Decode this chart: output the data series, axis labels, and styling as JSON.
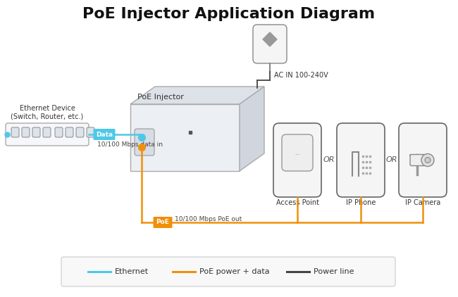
{
  "title": "PoE Injector Application Diagram",
  "title_fontsize": 16,
  "title_fontweight": "bold",
  "bg_color": "#ffffff",
  "eth_color": "#4ec8e8",
  "poe_color": "#f0900a",
  "power_color": "#444444",
  "legend": {
    "ethernet_label": "Ethernet",
    "poe_label": "PoE power + data",
    "power_label": "Power line"
  },
  "labels": {
    "ethernet_device": "Ethernet Device\n(Switch, Router, etc.)",
    "poe_injector": "PoE Injector",
    "ac_in": "AC IN 100-240V",
    "data": "Data",
    "data_in": "10/100 Mbps data in",
    "poe": "PoE",
    "poe_out": "10/100 Mbps PoE out",
    "access_point": "Access Point",
    "ip_phone": "IP Phone",
    "ip_camera": "IP Camera",
    "or1": "OR",
    "or2": "OR"
  }
}
